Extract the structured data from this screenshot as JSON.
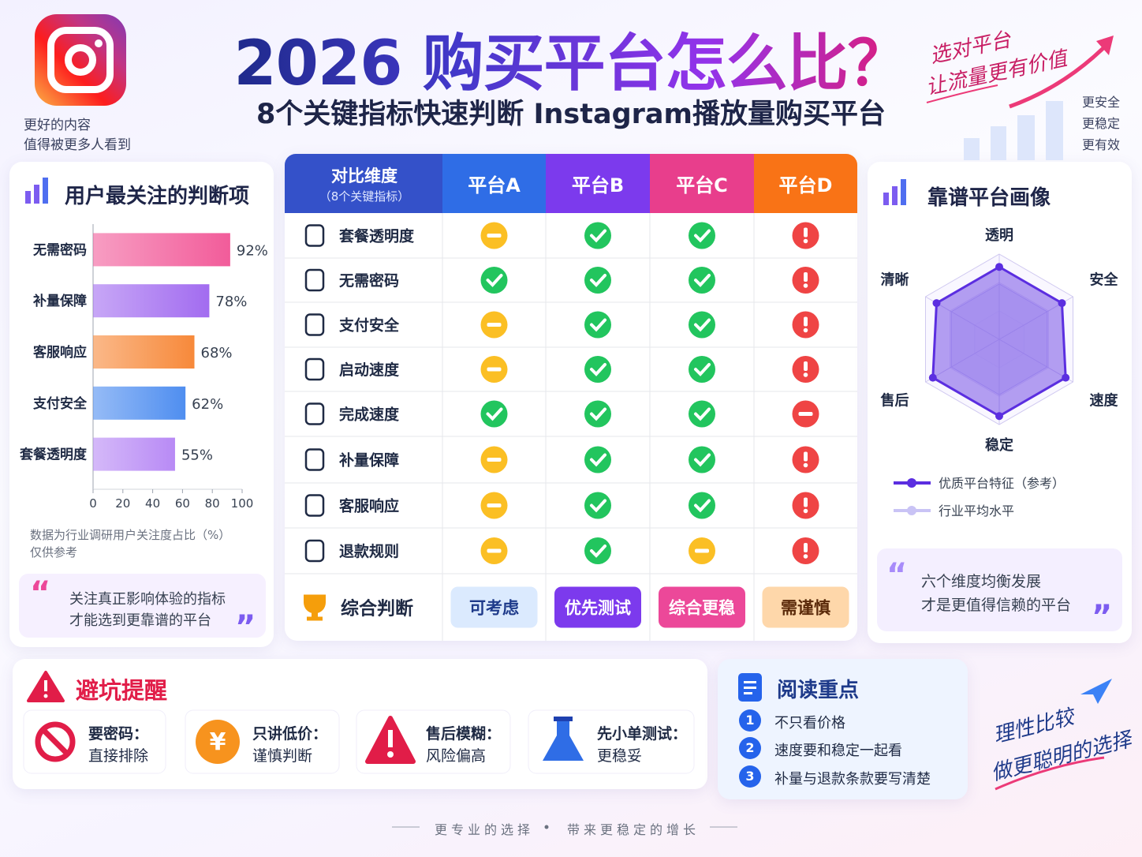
{
  "header": {
    "title": "2026 购买平台怎么比？",
    "subtitle": "8个关键指标快速判断 Instagram播放量购买平台",
    "logo_caption": [
      "更好的内容",
      "值得被更多人看到"
    ],
    "slogan": [
      "选对平台",
      "让流量更有价值"
    ],
    "benefits": [
      "更安全",
      "更稳定",
      "更有效"
    ]
  },
  "chart_data": [
    {
      "type": "bar",
      "title": "用户最关注的判断项",
      "categories": [
        "无需密码",
        "补量保障",
        "客服响应",
        "支付安全",
        "套餐透明度"
      ],
      "values": [
        92,
        78,
        68,
        62,
        55
      ],
      "value_labels": [
        "92%",
        "78%",
        "68%",
        "62%",
        "55%"
      ],
      "colors": [
        "#f25c9a",
        "#a26cf0",
        "#f7893a",
        "#4f8ef0",
        "#b88af5"
      ],
      "xlim": [
        0,
        100
      ],
      "xticks": [
        0,
        20,
        40,
        60,
        80,
        100
      ],
      "note": [
        "数据为行业调研用户关注度占比（%）",
        "仅供参考"
      ]
    },
    {
      "type": "radar",
      "title": "靠谱平台画像",
      "categories": [
        "透明",
        "安全",
        "速度",
        "稳定",
        "售后",
        "清晰"
      ],
      "rlim": [
        0,
        100
      ],
      "series": [
        {
          "name": "优质平台特征（参考）",
          "color": "#5b2ee0",
          "values": [
            85,
            85,
            90,
            90,
            90,
            85
          ]
        },
        {
          "name": "行业平均水平",
          "color": "#c9c3f5",
          "values": [
            65,
            65,
            65,
            65,
            65,
            65
          ]
        }
      ]
    }
  ],
  "left_quote": [
    "关注真正影响体验的指标",
    "才能选到更靠谱的平台"
  ],
  "right_quote": [
    "六个维度均衡发展",
    "才是更值得信赖的平台"
  ],
  "table": {
    "header": [
      "对比维度",
      "（8个关键指标）"
    ],
    "platforms": [
      "平台A",
      "平台B",
      "平台C",
      "平台D"
    ],
    "rows": [
      {
        "label": "套餐透明度",
        "status": [
          "warn",
          "check",
          "check",
          "alert"
        ]
      },
      {
        "label": "无需密码",
        "status": [
          "check",
          "check",
          "check",
          "alert"
        ]
      },
      {
        "label": "支付安全",
        "status": [
          "warn",
          "check",
          "check",
          "alert"
        ]
      },
      {
        "label": "启动速度",
        "status": [
          "warn",
          "check",
          "check",
          "alert"
        ]
      },
      {
        "label": "完成速度",
        "status": [
          "check",
          "check",
          "check",
          "block"
        ]
      },
      {
        "label": "补量保障",
        "status": [
          "warn",
          "check",
          "check",
          "alert"
        ]
      },
      {
        "label": "客服响应",
        "status": [
          "warn",
          "check",
          "check",
          "alert"
        ]
      },
      {
        "label": "退款规则",
        "status": [
          "warn",
          "check",
          "warn",
          "alert"
        ]
      }
    ],
    "verdict_label": "综合判断",
    "verdicts": [
      "可考虑",
      "优先测试",
      "综合更稳",
      "需谨慎"
    ]
  },
  "warnings": {
    "title": "避坑提醒",
    "items": [
      [
        "要密码：",
        "直接排除"
      ],
      [
        "只讲低价：",
        "谨慎判断"
      ],
      [
        "售后模糊：",
        "风险偏高"
      ],
      [
        "先小单测试：",
        "更稳妥"
      ]
    ]
  },
  "reading": {
    "title": "阅读重点",
    "items": [
      {
        "number": 1,
        "text": "不只看价格"
      },
      {
        "number": 2,
        "text": "速度要和稳定一起看"
      },
      {
        "number": 3,
        "text": "补量与退款条款要写清楚"
      }
    ]
  },
  "closing": [
    "理性比较",
    "做更聪明的选择"
  ],
  "footer": [
    "更专业的选择",
    "带来更稳定的增长"
  ]
}
